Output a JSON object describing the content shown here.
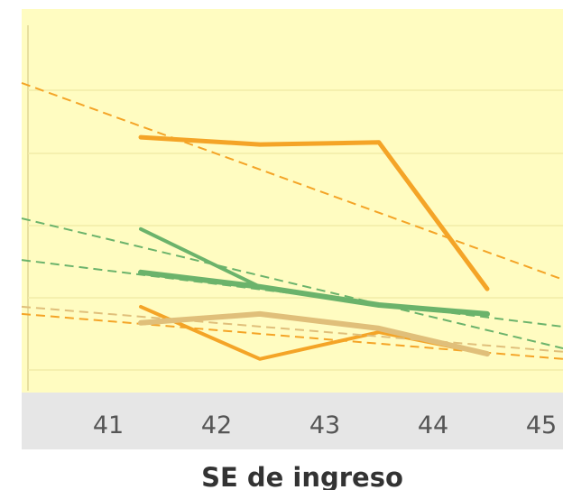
{
  "chart_data": {
    "type": "line",
    "title": "",
    "xlabel": "SE de ingreso",
    "ylabel": "",
    "x_ticks": [
      41,
      42,
      43,
      44,
      45
    ],
    "xlim": [
      40.2,
      45.2
    ],
    "ylim": [
      0,
      100
    ],
    "grid": true,
    "background": "#fffcc1",
    "axis_band_color": "#e6e6e6",
    "series": [
      {
        "color": "#f4a427",
        "width": 5,
        "style": "solid",
        "points": [
          [
            41.3,
            80.6
          ],
          [
            42.4,
            78.1
          ],
          [
            43.5,
            78.8
          ],
          [
            44.5,
            28.1
          ]
        ]
      },
      {
        "color": "#f4a427",
        "width": 2,
        "style": "dashed",
        "points": [
          [
            40.2,
            99.4
          ],
          [
            45.2,
            31.3
          ]
        ]
      },
      {
        "color": "#6bb36b",
        "width": 4,
        "style": "solid",
        "points": [
          [
            41.3,
            48.8
          ],
          [
            42.4,
            28.8
          ],
          [
            43.5,
            22.5
          ],
          [
            44.5,
            19.4
          ]
        ]
      },
      {
        "color": "#6bb36b",
        "width": 2,
        "style": "dashed",
        "points": [
          [
            40.2,
            52.5
          ],
          [
            45.2,
            7.5
          ]
        ]
      },
      {
        "color": "#6bb36b",
        "width": 6,
        "style": "solid",
        "points": [
          [
            41.3,
            33.8
          ],
          [
            42.4,
            28.8
          ],
          [
            43.5,
            22.5
          ],
          [
            44.5,
            19.4
          ]
        ]
      },
      {
        "color": "#6bb36b",
        "width": 2,
        "style": "dashed",
        "points": [
          [
            40.2,
            38.1
          ],
          [
            45.2,
            15.0
          ]
        ]
      },
      {
        "color": "#f4a427",
        "width": 4,
        "style": "solid",
        "points": [
          [
            41.3,
            21.9
          ],
          [
            42.4,
            3.8
          ],
          [
            43.5,
            13.1
          ],
          [
            44.5,
            5.6
          ]
        ]
      },
      {
        "color": "#f4a427",
        "width": 2,
        "style": "dashed",
        "points": [
          [
            40.2,
            19.4
          ],
          [
            45.2,
            3.8
          ]
        ]
      },
      {
        "color": "#e0bf7a",
        "width": 6,
        "style": "solid",
        "points": [
          [
            41.3,
            16.3
          ],
          [
            42.4,
            19.4
          ],
          [
            43.5,
            14.4
          ],
          [
            44.5,
            5.6
          ]
        ]
      },
      {
        "color": "#e0bf7a",
        "width": 2,
        "style": "dashed",
        "points": [
          [
            40.2,
            21.9
          ],
          [
            45.2,
            6.3
          ]
        ]
      }
    ]
  }
}
